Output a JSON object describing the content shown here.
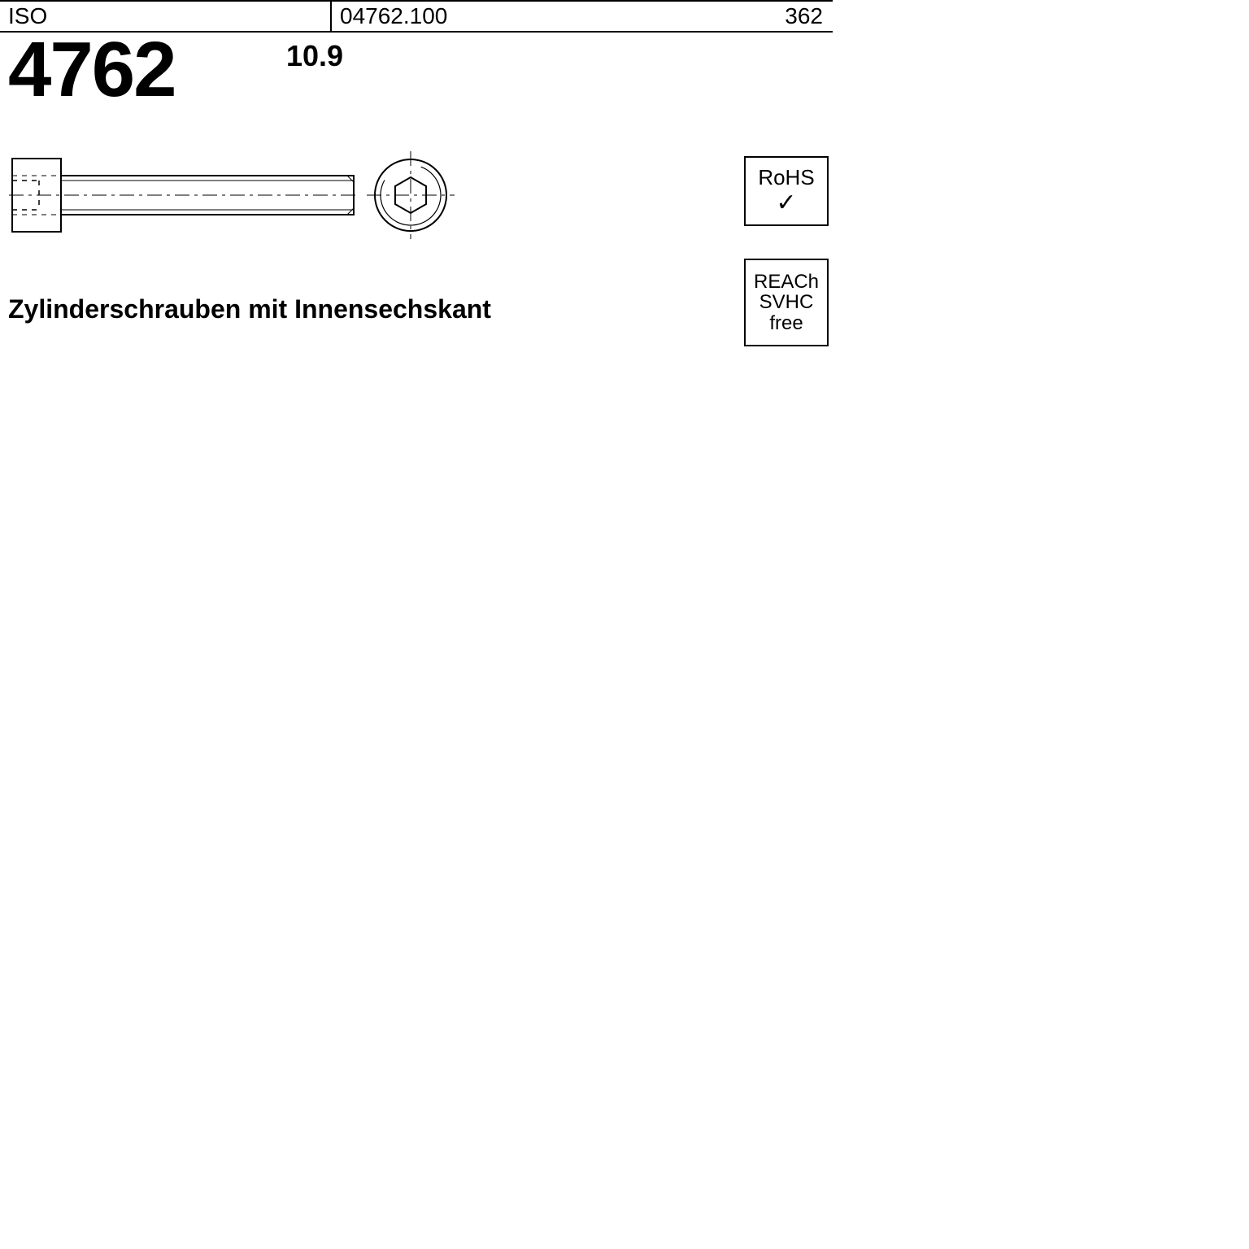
{
  "header": {
    "standard_label": "ISO",
    "code": "04762.100",
    "page_number": "362"
  },
  "main": {
    "standard_number": "4762",
    "strength_grade": "10.9",
    "description": "Zylinderschrauben mit Innensechskant"
  },
  "badges": {
    "rohs_label": "RoHS",
    "rohs_check": "✓",
    "reach_line1": "REACh",
    "reach_line2": "SVHC",
    "reach_line3": "free"
  },
  "drawing": {
    "head_width": 60,
    "head_height": 90,
    "shaft_length": 360,
    "shaft_height": 48,
    "hex_radius": 22,
    "circle_radius": 44,
    "stroke": "#000000",
    "dash": "6,6",
    "centerline_dash": "18,6,4,6"
  }
}
